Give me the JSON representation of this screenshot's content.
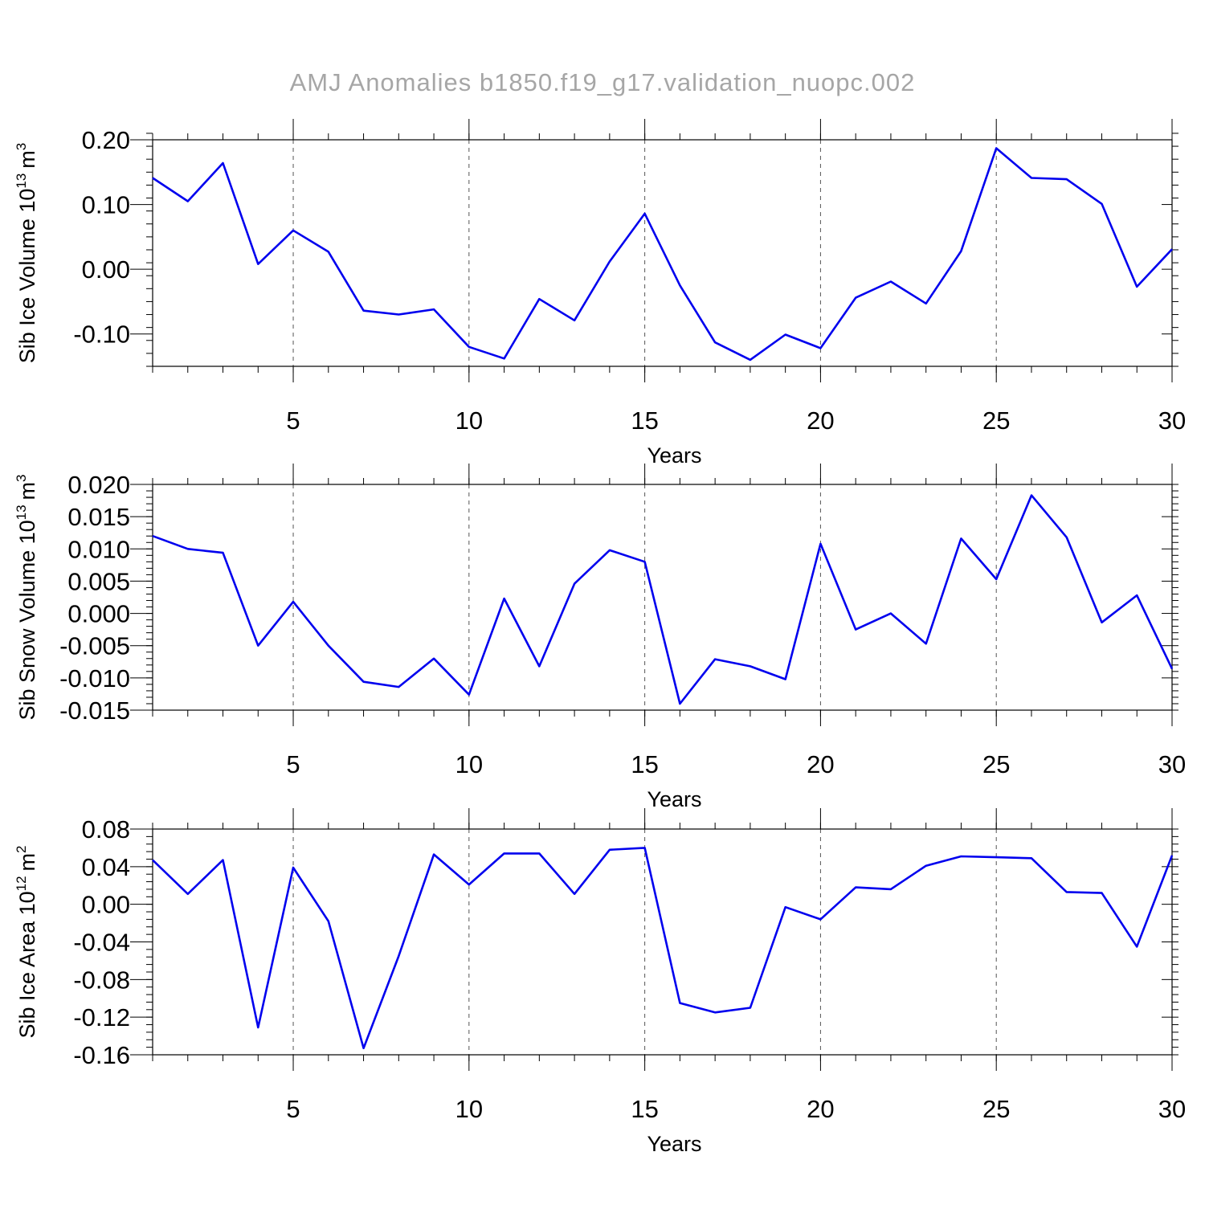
{
  "title": "AMJ Anomalies  b1850.f19_g17.validation_nuopc.002",
  "colors": {
    "series": "#0000ee",
    "title": "#a6a6a6",
    "grid": "#555555"
  },
  "chart_data": [
    {
      "type": "line",
      "xlabel": "Years",
      "ylabel": "Sib Ice Volume 10",
      "ylabel_exp": "13",
      "ylabel_unit": "m",
      "ylabel_unit_exp": "3",
      "xlim": [
        1,
        30
      ],
      "ylim": [
        -0.15,
        0.2
      ],
      "xticks": [
        5,
        10,
        15,
        20,
        25,
        30
      ],
      "xtick_labels": [
        "5",
        "10",
        "15",
        "20",
        "25",
        "30"
      ],
      "yticks": [
        -0.1,
        0.0,
        0.1,
        0.2
      ],
      "ytick_labels": [
        "-0.10",
        "0.00",
        "0.10",
        "0.20"
      ],
      "grid_x": [
        5,
        10,
        15,
        20,
        25
      ],
      "x": [
        1,
        2,
        3,
        4,
        5,
        6,
        7,
        8,
        9,
        10,
        11,
        12,
        13,
        14,
        15,
        16,
        17,
        18,
        19,
        20,
        21,
        22,
        23,
        24,
        25,
        26,
        27,
        28,
        29,
        30
      ],
      "y": [
        0.141,
        0.105,
        0.164,
        0.008,
        0.06,
        0.027,
        -0.064,
        -0.07,
        -0.062,
        -0.12,
        -0.138,
        -0.046,
        -0.079,
        0.012,
        0.086,
        -0.025,
        -0.113,
        -0.14,
        -0.101,
        -0.122,
        -0.044,
        -0.019,
        -0.053,
        0.028,
        0.187,
        0.141,
        0.139,
        0.101,
        -0.027,
        0.031
      ]
    },
    {
      "type": "line",
      "xlabel": "Years",
      "ylabel": "Sib Snow Volume 10",
      "ylabel_exp": "13",
      "ylabel_unit": "m",
      "ylabel_unit_exp": "3",
      "xlim": [
        1,
        30
      ],
      "ylim": [
        -0.015,
        0.02
      ],
      "xticks": [
        5,
        10,
        15,
        20,
        25,
        30
      ],
      "xtick_labels": [
        "5",
        "10",
        "15",
        "20",
        "25",
        "30"
      ],
      "yticks": [
        -0.015,
        -0.01,
        -0.005,
        0.0,
        0.005,
        0.01,
        0.015,
        0.02
      ],
      "ytick_labels": [
        "-0.015",
        "-0.010",
        "-0.005",
        "0.000",
        "0.005",
        "0.010",
        "0.015",
        "0.020"
      ],
      "grid_x": [
        5,
        10,
        15,
        20,
        25
      ],
      "x": [
        1,
        2,
        3,
        4,
        5,
        6,
        7,
        8,
        9,
        10,
        11,
        12,
        13,
        14,
        15,
        16,
        17,
        18,
        19,
        20,
        21,
        22,
        23,
        24,
        25,
        26,
        27,
        28,
        29,
        30
      ],
      "y": [
        0.012,
        0.01,
        0.0094,
        -0.005,
        0.0018,
        -0.005,
        -0.0106,
        -0.0114,
        -0.007,
        -0.0126,
        0.0023,
        -0.0082,
        0.0046,
        0.0098,
        0.008,
        -0.014,
        -0.0071,
        -0.0082,
        -0.0102,
        0.0108,
        -0.0025,
        0.0,
        -0.0047,
        0.0116,
        0.0053,
        0.0183,
        0.0118,
        -0.0014,
        0.0028,
        -0.0086
      ]
    },
    {
      "type": "line",
      "xlabel": "Years",
      "ylabel": "Sib Ice Area 10",
      "ylabel_exp": "12",
      "ylabel_unit": "m",
      "ylabel_unit_exp": "2",
      "xlim": [
        1,
        30
      ],
      "ylim": [
        -0.16,
        0.08
      ],
      "xticks": [
        5,
        10,
        15,
        20,
        25,
        30
      ],
      "xtick_labels": [
        "5",
        "10",
        "15",
        "20",
        "25",
        "30"
      ],
      "yticks": [
        -0.16,
        -0.12,
        -0.08,
        -0.04,
        0.0,
        0.04,
        0.08
      ],
      "ytick_labels": [
        "-0.16",
        "-0.12",
        "-0.08",
        "-0.04",
        "0.00",
        "0.04",
        "0.08"
      ],
      "grid_x": [
        5,
        10,
        15,
        20,
        25
      ],
      "x": [
        1,
        2,
        3,
        4,
        5,
        6,
        7,
        8,
        9,
        10,
        11,
        12,
        13,
        14,
        15,
        16,
        17,
        18,
        19,
        20,
        21,
        22,
        23,
        24,
        25,
        26,
        27,
        28,
        29,
        30
      ],
      "y": [
        0.047,
        0.011,
        0.047,
        -0.131,
        0.039,
        -0.018,
        -0.153,
        -0.055,
        0.053,
        0.021,
        0.054,
        0.054,
        0.011,
        0.058,
        0.06,
        -0.105,
        -0.115,
        -0.11,
        -0.003,
        -0.016,
        0.018,
        0.016,
        0.041,
        0.051,
        0.05,
        0.049,
        0.013,
        0.012,
        -0.045,
        0.052
      ]
    }
  ]
}
